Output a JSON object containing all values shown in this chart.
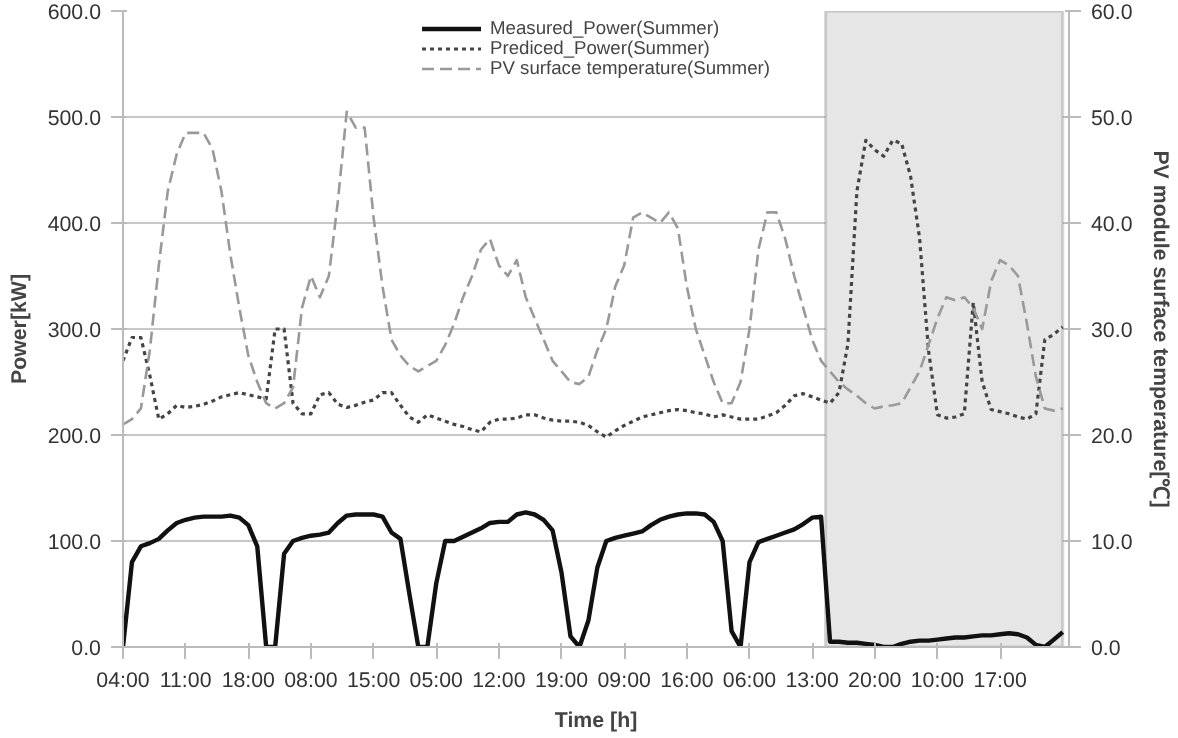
{
  "chart_data": {
    "type": "line",
    "xlabel": "Time [h]",
    "ylabel": "Power[kW]",
    "y2label": "PV module surface temperature[℃]",
    "categories": [
      "04:00",
      null,
      null,
      null,
      null,
      null,
      null,
      "11:00",
      null,
      null,
      null,
      null,
      null,
      null,
      "18:00",
      null,
      null,
      null,
      null,
      null,
      null,
      "08:00",
      null,
      null,
      null,
      null,
      null,
      null,
      "15:00",
      null,
      null,
      null,
      null,
      null,
      null,
      "05:00",
      null,
      null,
      null,
      null,
      null,
      null,
      "12:00",
      null,
      null,
      null,
      null,
      null,
      null,
      "19:00",
      null,
      null,
      null,
      null,
      null,
      null,
      "09:00",
      null,
      null,
      null,
      null,
      null,
      null,
      "16:00",
      null,
      null,
      null,
      null,
      null,
      null,
      "06:00",
      null,
      null,
      null,
      null,
      null,
      null,
      "13:00",
      null,
      null,
      null,
      null,
      null,
      null,
      "20:00",
      null,
      null,
      null,
      null,
      null,
      null,
      "10:00",
      null,
      null,
      null,
      null,
      null,
      null,
      "17:00",
      null,
      null,
      null,
      null,
      null,
      null,
      null
    ],
    "ylim": [
      0,
      600
    ],
    "yticks": [
      {
        "value": 0,
        "label": "0.0"
      },
      {
        "value": 100,
        "label": "100.0"
      },
      {
        "value": 200,
        "label": "200.0"
      },
      {
        "value": 300,
        "label": "300.0"
      },
      {
        "value": 400,
        "label": "400.0"
      },
      {
        "value": 500,
        "label": "500.0"
      },
      {
        "value": 600,
        "label": "600.0"
      }
    ],
    "y2lim": [
      0,
      60
    ],
    "y2ticks": [
      {
        "value": 0,
        "label": "0.0"
      },
      {
        "value": 10,
        "label": "10.0"
      },
      {
        "value": 20,
        "label": "20.0"
      },
      {
        "value": 30,
        "label": "30.0"
      },
      {
        "value": 40,
        "label": "40.0"
      },
      {
        "value": 50,
        "label": "50.0"
      },
      {
        "value": 60,
        "label": "60.0"
      }
    ],
    "grid": "y",
    "legend": "top",
    "marker": "none",
    "series": [
      {
        "name": "Measured_Power(Summer)",
        "color": "#111111",
        "line_style": "solid",
        "values": [
          0,
          80,
          95,
          98,
          102,
          110,
          117,
          120,
          122,
          123,
          123,
          123,
          124,
          122,
          115,
          95,
          0,
          0,
          88,
          100,
          103,
          105,
          106,
          108,
          117,
          124,
          125,
          125,
          125,
          123,
          108,
          102,
          50,
          0,
          0,
          60,
          100,
          100,
          104,
          108,
          112,
          117,
          118,
          118,
          125,
          127,
          125,
          120,
          110,
          70,
          10,
          0,
          25,
          75,
          100,
          103,
          105,
          107,
          109,
          115,
          120,
          123,
          125,
          126,
          126,
          125,
          118,
          100,
          15,
          0,
          80,
          99,
          102,
          105,
          108,
          111,
          116,
          122,
          123,
          5,
          5,
          4,
          4,
          3,
          2,
          0,
          0,
          3,
          5,
          6,
          6,
          7,
          8,
          9,
          9,
          10,
          11,
          11,
          12,
          13,
          12,
          9,
          2,
          0,
          7,
          14
        ]
      },
      {
        "name": "Prediced_Power(Summer)",
        "color": "#444444",
        "line_style": "dotted",
        "values": [
          270,
          292,
          292,
          256,
          215,
          220,
          228,
          226,
          227,
          229,
          232,
          236,
          238,
          240,
          238,
          236,
          234,
          300,
          300,
          230,
          220,
          220,
          238,
          240,
          229,
          226,
          228,
          231,
          233,
          240,
          240,
          228,
          217,
          212,
          219,
          216,
          213,
          210,
          208,
          205,
          203,
          212,
          215,
          215,
          216,
          219,
          219,
          216,
          214,
          213,
          213,
          212,
          209,
          203,
          198,
          204,
          209,
          213,
          217,
          219,
          221,
          223,
          224,
          223,
          221,
          220,
          217,
          219,
          217,
          215,
          215,
          215,
          218,
          221,
          228,
          237,
          239,
          236,
          233,
          230,
          240,
          286,
          430,
          478,
          469,
          463,
          478,
          475,
          444,
          386,
          280,
          219,
          216,
          217,
          220,
          325,
          250,
          224,
          222,
          220,
          217,
          215,
          220,
          290,
          295,
          302
        ]
      },
      {
        "name": "PV surface temperature(Summer)",
        "color": "#999999",
        "line_style": "dashed",
        "axis": "y2",
        "values": [
          21,
          21.5,
          22.5,
          28,
          36,
          43,
          46.5,
          48.5,
          48.5,
          48.5,
          47,
          43,
          37,
          32,
          27.5,
          25,
          23,
          22.5,
          23,
          24.5,
          32,
          35,
          33,
          35,
          42,
          50.5,
          49,
          49,
          40.5,
          34,
          29,
          27.5,
          26.5,
          26,
          26.5,
          27,
          28.5,
          30.5,
          33,
          35,
          37.5,
          38.5,
          36,
          35,
          36.5,
          33,
          31,
          29,
          27,
          26,
          25,
          24.8,
          25.5,
          28,
          30,
          34,
          36,
          40.5,
          41,
          40.5,
          40,
          41,
          39.5,
          34,
          30,
          27.5,
          25,
          23,
          23,
          25,
          30,
          37.5,
          41,
          41,
          38.5,
          35,
          32,
          29,
          27,
          26,
          25,
          24.3,
          23.7,
          23,
          22.5,
          22.7,
          22.8,
          23,
          24.5,
          26,
          28.5,
          31,
          33,
          32.7,
          33,
          32,
          30,
          34.5,
          36.5,
          36,
          35,
          30.5,
          25.5,
          22.5,
          22.3,
          22.5
        ]
      }
    ]
  }
}
